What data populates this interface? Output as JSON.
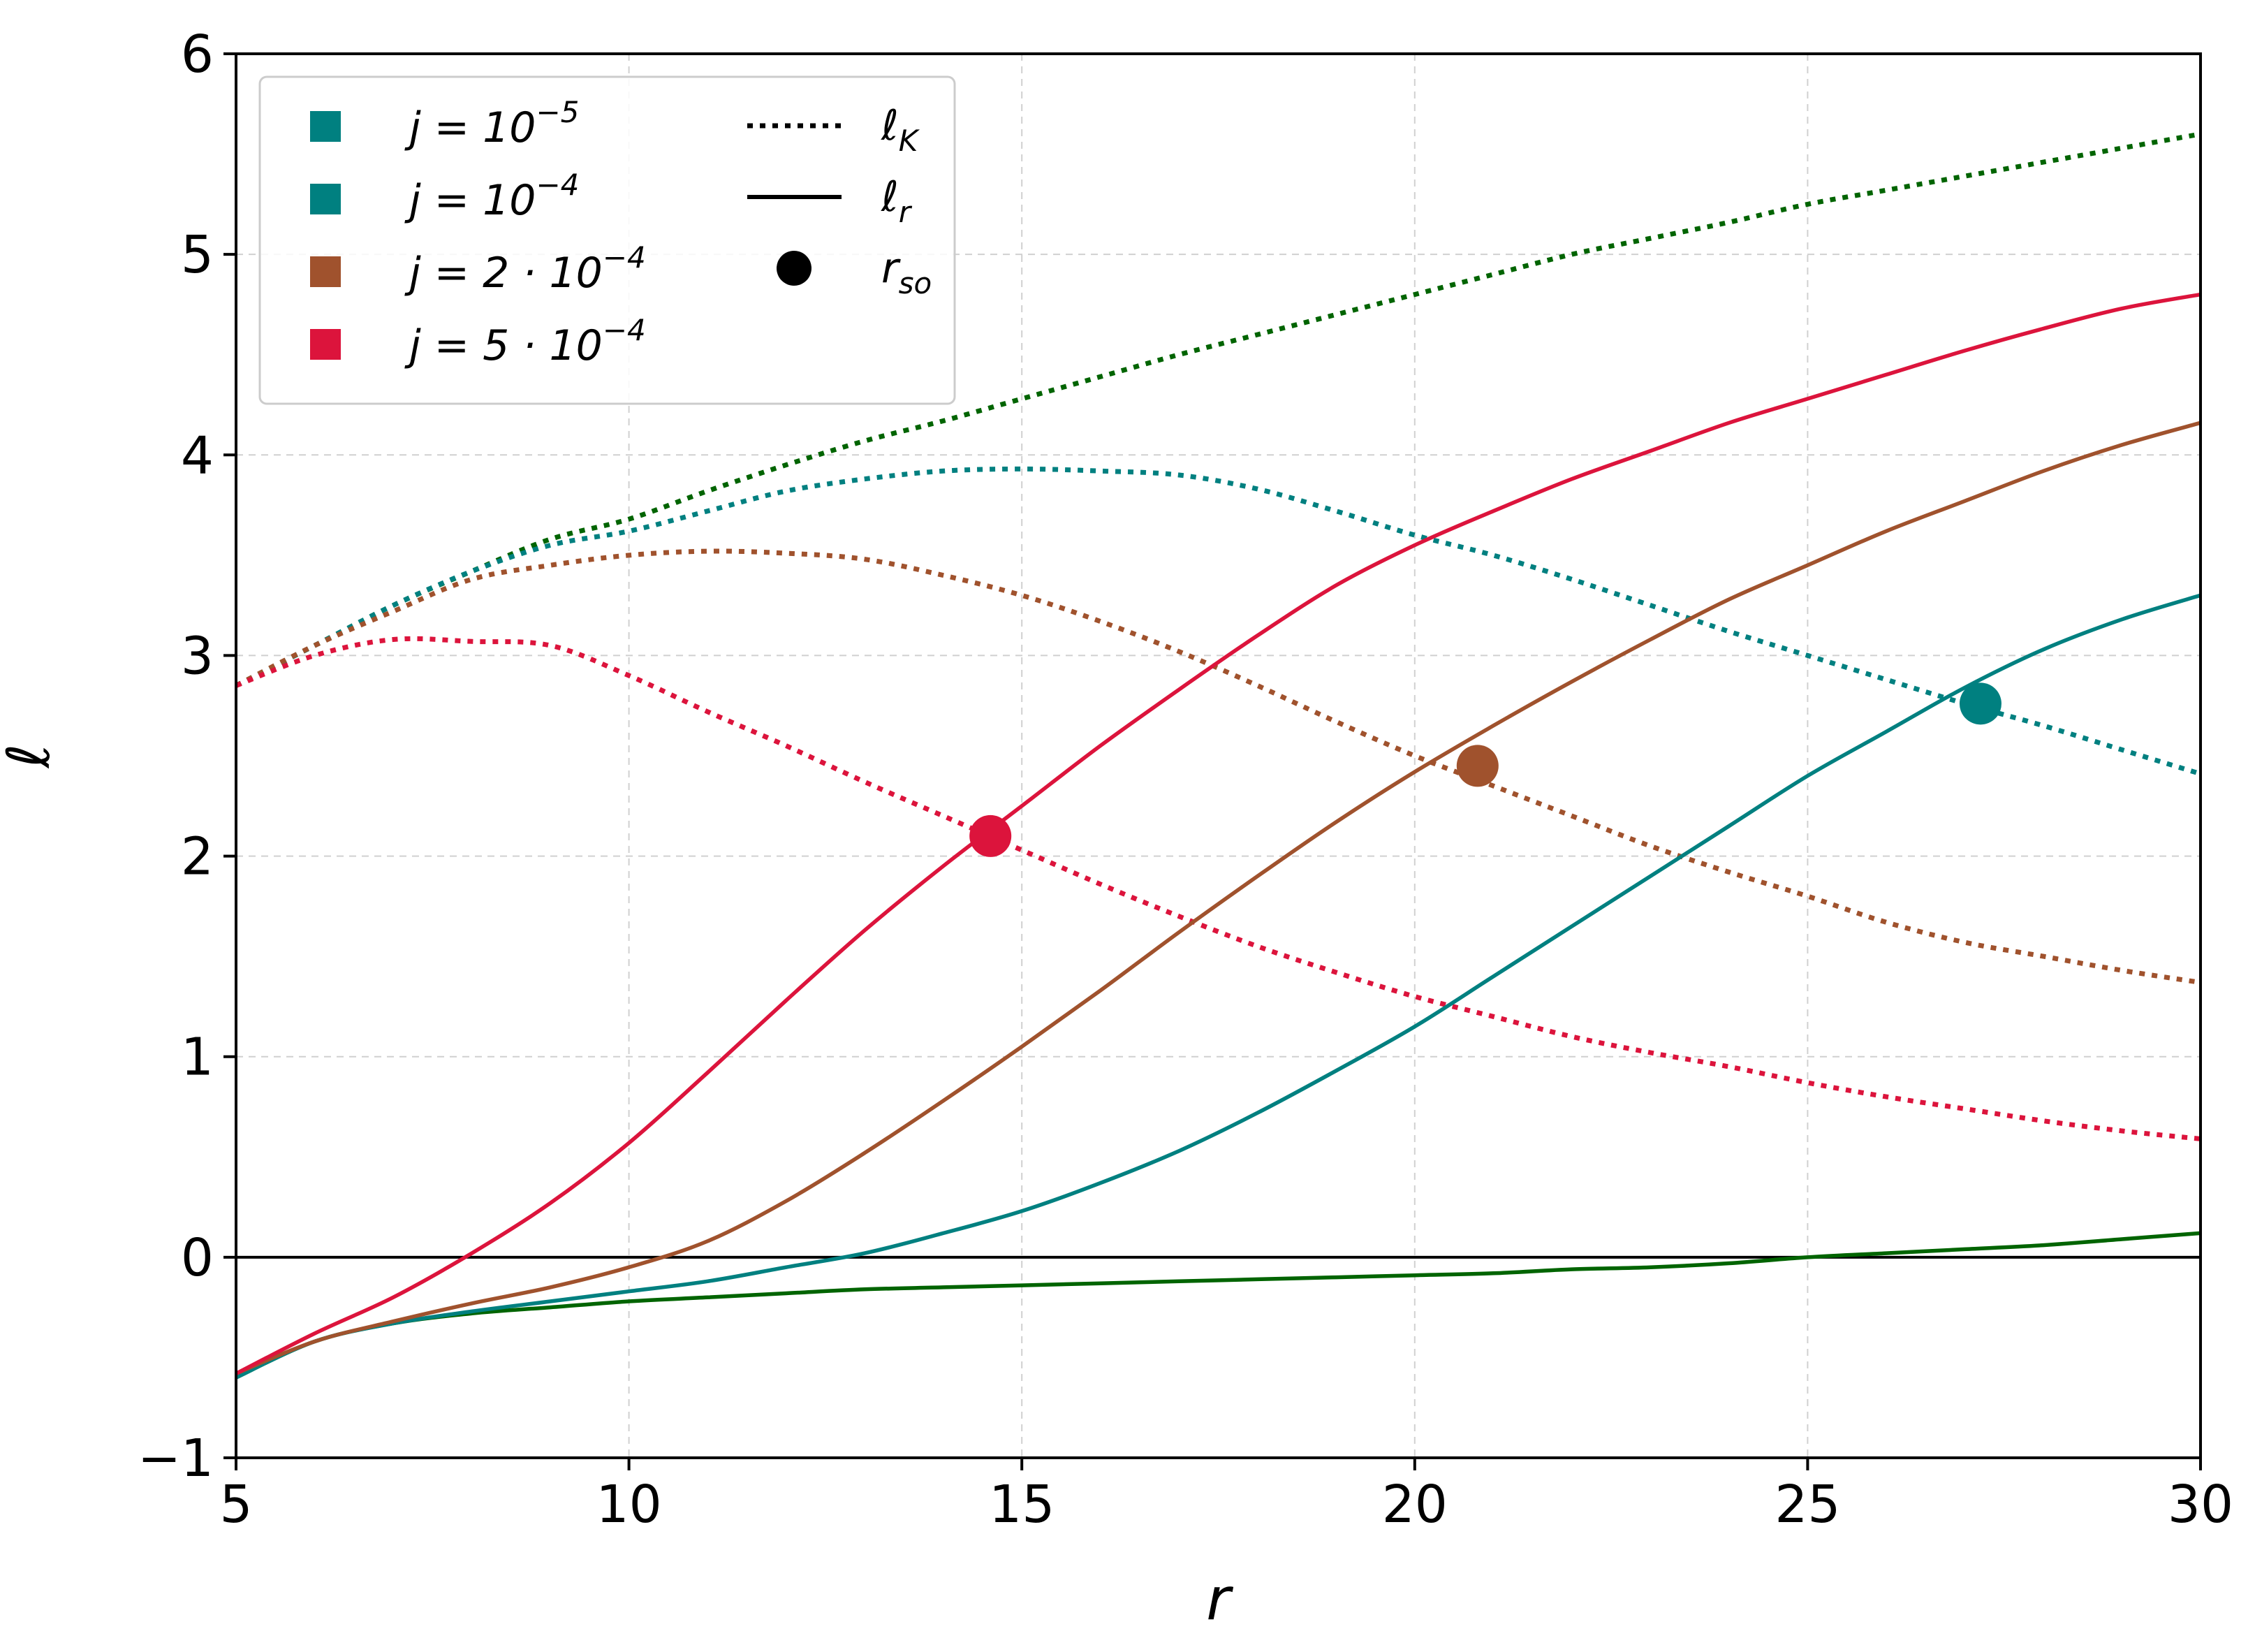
{
  "chart_data": {
    "type": "line",
    "xlabel": "r",
    "ylabel": "ℓ",
    "xlim": [
      5,
      30
    ],
    "ylim": [
      -1,
      6
    ],
    "x_ticks": [
      5,
      10,
      15,
      20,
      25,
      30
    ],
    "y_ticks": [
      -1,
      0,
      1,
      2,
      3,
      4,
      5,
      6
    ],
    "x_tick_labels": [
      "5",
      "10",
      "15",
      "20",
      "25",
      "30"
    ],
    "y_tick_labels": [
      "−1",
      "0",
      "1",
      "2",
      "3",
      "4",
      "5",
      "6"
    ],
    "grid": true,
    "legend_position": "top-left",
    "legend": {
      "colors": [
        {
          "label": "j = 10",
          "exponent": "−5",
          "color": "#008080"
        },
        {
          "label": "j = 10",
          "exponent": "−4",
          "color": "#008080"
        },
        {
          "label": "j = 2 · 10",
          "exponent": "−4",
          "color": "#A0522D"
        },
        {
          "label": "j = 5 · 10",
          "exponent": "−4",
          "color": "#DC143C"
        }
      ],
      "styles": [
        {
          "label": "ℓ",
          "subscript": "K",
          "style": "dotted"
        },
        {
          "label": "ℓ",
          "subscript": "r",
          "style": "solid"
        },
        {
          "label": "r",
          "subscript": "so",
          "style": "marker"
        }
      ]
    },
    "reference_line": {
      "y": 0,
      "color": "#000000"
    },
    "series": [
      {
        "style": "dotted",
        "color": "#006400",
        "x": [
          5,
          6,
          7,
          8,
          9,
          10,
          11,
          12,
          13,
          14,
          15,
          16,
          17,
          18,
          19,
          20,
          21,
          22,
          23,
          24,
          25,
          26,
          27,
          28,
          29,
          30
        ],
        "y": [
          2.85,
          3.05,
          3.25,
          3.42,
          3.58,
          3.68,
          3.82,
          3.95,
          4.07,
          4.17,
          4.28,
          4.39,
          4.5,
          4.6,
          4.7,
          4.8,
          4.9,
          5.0,
          5.08,
          5.16,
          5.25,
          5.32,
          5.39,
          5.46,
          5.53,
          5.6
        ]
      },
      {
        "style": "dotted",
        "color": "#008080",
        "x": [
          5,
          6,
          7,
          8,
          9,
          10,
          11,
          12,
          13,
          14,
          15,
          16,
          17,
          18,
          19,
          20,
          21,
          22,
          23,
          24,
          25,
          26,
          27,
          28,
          29,
          30
        ],
        "y": [
          2.85,
          3.05,
          3.25,
          3.42,
          3.55,
          3.62,
          3.72,
          3.82,
          3.88,
          3.92,
          3.93,
          3.92,
          3.9,
          3.83,
          3.72,
          3.6,
          3.5,
          3.38,
          3.25,
          3.12,
          3.0,
          2.88,
          2.76,
          2.65,
          2.53,
          2.41
        ]
      },
      {
        "style": "dotted",
        "color": "#A0522D",
        "x": [
          5,
          6,
          7,
          8,
          9,
          10,
          11,
          12,
          13,
          14,
          15,
          16,
          17,
          18,
          19,
          20,
          21,
          22,
          23,
          24,
          25,
          26,
          27,
          28,
          29,
          30
        ],
        "y": [
          2.85,
          3.05,
          3.22,
          3.38,
          3.45,
          3.5,
          3.52,
          3.51,
          3.48,
          3.4,
          3.3,
          3.17,
          3.02,
          2.85,
          2.67,
          2.5,
          2.35,
          2.2,
          2.05,
          1.92,
          1.8,
          1.67,
          1.57,
          1.5,
          1.43,
          1.37
        ]
      },
      {
        "style": "dotted",
        "color": "#DC143C",
        "x": [
          5,
          6,
          7,
          8,
          9,
          10,
          11,
          12,
          13,
          14,
          15,
          16,
          17,
          18,
          19,
          20,
          21,
          22,
          23,
          24,
          25,
          26,
          27,
          28,
          29,
          30
        ],
        "y": [
          2.85,
          3.0,
          3.08,
          3.07,
          3.05,
          2.9,
          2.72,
          2.55,
          2.37,
          2.2,
          2.03,
          1.86,
          1.7,
          1.55,
          1.42,
          1.3,
          1.2,
          1.1,
          1.02,
          0.95,
          0.87,
          0.8,
          0.74,
          0.68,
          0.63,
          0.59
        ]
      },
      {
        "style": "solid",
        "color": "#006400",
        "x": [
          5,
          6,
          7,
          8,
          9,
          10,
          11,
          12,
          13,
          14,
          15,
          16,
          17,
          18,
          19,
          20,
          21,
          22,
          23,
          24,
          25,
          26,
          27,
          28,
          29,
          30
        ],
        "y": [
          -0.6,
          -0.42,
          -0.33,
          -0.28,
          -0.25,
          -0.22,
          -0.2,
          -0.18,
          -0.16,
          -0.15,
          -0.14,
          -0.13,
          -0.12,
          -0.11,
          -0.1,
          -0.09,
          -0.08,
          -0.06,
          -0.05,
          -0.03,
          0.0,
          0.02,
          0.04,
          0.06,
          0.09,
          0.12
        ]
      },
      {
        "style": "solid",
        "color": "#008080",
        "x": [
          5,
          6,
          7,
          8,
          9,
          10,
          11,
          12,
          13,
          14,
          15,
          16,
          17,
          18,
          19,
          20,
          21,
          22,
          23,
          24,
          25,
          26,
          27,
          28,
          29,
          30
        ],
        "y": [
          -0.6,
          -0.42,
          -0.33,
          -0.27,
          -0.22,
          -0.17,
          -0.12,
          -0.05,
          0.02,
          0.12,
          0.23,
          0.37,
          0.53,
          0.72,
          0.93,
          1.15,
          1.4,
          1.65,
          1.9,
          2.15,
          2.4,
          2.62,
          2.84,
          3.03,
          3.18,
          3.3
        ]
      },
      {
        "style": "solid",
        "color": "#A0522D",
        "x": [
          5,
          6,
          7,
          8,
          9,
          10,
          11,
          12,
          13,
          14,
          15,
          16,
          17,
          18,
          19,
          20,
          21,
          22,
          23,
          24,
          25,
          26,
          27,
          28,
          29,
          30
        ],
        "y": [
          -0.58,
          -0.42,
          -0.32,
          -0.23,
          -0.15,
          -0.05,
          0.08,
          0.28,
          0.52,
          0.78,
          1.05,
          1.33,
          1.62,
          1.9,
          2.17,
          2.42,
          2.65,
          2.87,
          3.08,
          3.28,
          3.45,
          3.62,
          3.77,
          3.92,
          4.05,
          4.16
        ]
      },
      {
        "style": "solid",
        "color": "#DC143C",
        "x": [
          5,
          6,
          7,
          8,
          9,
          10,
          11,
          12,
          13,
          14,
          15,
          16,
          17,
          18,
          19,
          20,
          21,
          22,
          23,
          24,
          25,
          26,
          27,
          28,
          29,
          30
        ],
        "y": [
          -0.58,
          -0.38,
          -0.2,
          0.02,
          0.27,
          0.57,
          0.92,
          1.28,
          1.63,
          1.95,
          2.25,
          2.55,
          2.83,
          3.1,
          3.35,
          3.55,
          3.72,
          3.88,
          4.02,
          4.16,
          4.28,
          4.4,
          4.52,
          4.63,
          4.73,
          4.8
        ]
      }
    ],
    "markers": [
      {
        "x": 27.2,
        "y": 2.76,
        "color": "#008080"
      },
      {
        "x": 20.8,
        "y": 2.45,
        "color": "#A0522D"
      },
      {
        "x": 14.6,
        "y": 2.1,
        "color": "#DC143C"
      }
    ]
  }
}
